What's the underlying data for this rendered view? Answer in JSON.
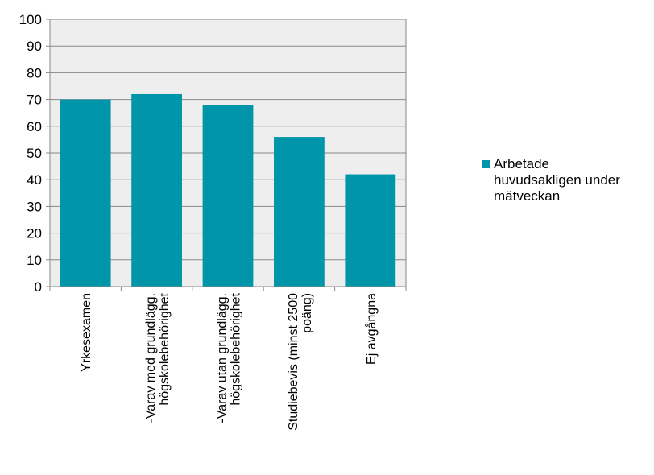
{
  "chart_data": {
    "type": "bar",
    "categories": [
      [
        "Yrkesexamen"
      ],
      [
        "-Varav med grundlägg.",
        "högskolebehörighet"
      ],
      [
        "-Varav utan grundlägg.",
        "högskolebehörighet"
      ],
      [
        "Studiebevis (minst 2500",
        "poäng)"
      ],
      [
        "Ej avgångna"
      ]
    ],
    "series": [
      {
        "name": [
          "Arbetade",
          "huvudsakligen under",
          "mätveckan"
        ],
        "values": [
          70,
          72,
          68,
          56,
          42
        ]
      }
    ],
    "ylim": [
      0,
      100
    ],
    "yticks": [
      0,
      10,
      20,
      30,
      40,
      50,
      60,
      70,
      80,
      90,
      100
    ],
    "grid": true,
    "legend": "right",
    "colors": {
      "bar": "#0095A8",
      "plot_bg": "#EEEEEE",
      "grid": "#888888",
      "axis": "#888888"
    }
  }
}
